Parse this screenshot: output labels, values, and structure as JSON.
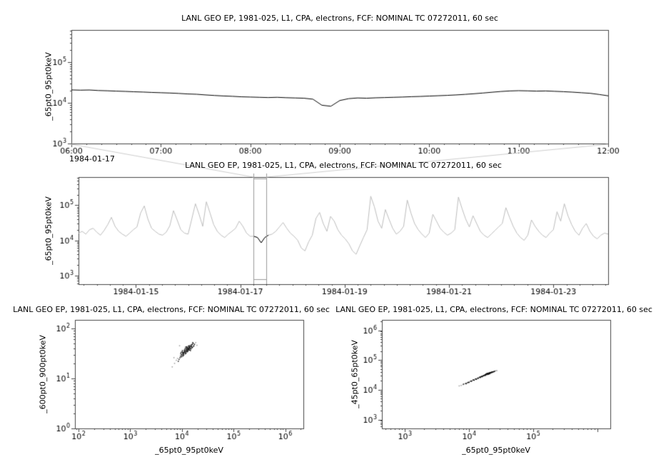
{
  "chart_data": [
    {
      "id": "top-timeseries",
      "type": "line",
      "title": "LANL GEO EP, 1981-025, L1, CPA, electrons, FCF: NOMINAL TC 07272011, 60 sec",
      "ylabel": "_65pt0_95pt0keV",
      "x_axis": {
        "scale": "time",
        "context_label": "1984-01-17",
        "range": [
          6,
          12
        ],
        "tick_values": [
          6,
          7,
          8,
          9,
          10,
          11,
          12
        ],
        "tick_labels": [
          "06:00",
          "07:00",
          "08:00",
          "09:00",
          "10:00",
          "11:00",
          "12:00"
        ],
        "minor_step": 0.1666667
      },
      "y_axis": {
        "scale": "log",
        "range_exp": [
          3.0,
          5.8
        ],
        "tick_exponents": [
          3,
          4,
          5
        ]
      },
      "series": [
        {
          "name": "_65pt0_95pt0keV",
          "color": "#000000",
          "t0": 6.0,
          "dt": 0.1,
          "values": [
            21000,
            20700,
            20900,
            20300,
            20000,
            19600,
            19300,
            18900,
            18600,
            18200,
            17900,
            17600,
            17200,
            16700,
            16400,
            15800,
            15300,
            14900,
            14600,
            14200,
            14000,
            13800,
            13600,
            13800,
            13500,
            13300,
            13100,
            12400,
            8800,
            8300,
            11500,
            12800,
            13300,
            13100,
            13400,
            13600,
            13800,
            14000,
            14300,
            14500,
            14800,
            15100,
            15400,
            15800,
            16300,
            16900,
            17600,
            18400,
            19200,
            19800,
            20100,
            19900,
            19600,
            19800,
            19400,
            19000,
            18500,
            17900,
            17300,
            16200,
            15000
          ]
        }
      ]
    },
    {
      "id": "context-timeseries",
      "type": "line",
      "title": "LANL GEO EP, 1981-025, L1, CPA, electrons, FCF: NOMINAL TC 07272011, 60 sec",
      "ylabel": "_65pt0_95pt0keV",
      "x_axis": {
        "scale": "time",
        "range": [
          13.9,
          24.05
        ],
        "tick_values": [
          15,
          17,
          19,
          21,
          23
        ],
        "tick_labels": [
          "1984-01-15",
          "1984-01-17",
          "1984-01-19",
          "1984-01-21",
          "1984-01-23"
        ],
        "minor_step": 0.25
      },
      "y_axis": {
        "scale": "log",
        "range_exp": [
          2.75,
          5.8
        ],
        "tick_exponents": [
          3,
          4,
          5
        ]
      },
      "series": [
        {
          "name": "_65pt0_95pt0keV",
          "color": "#bcbcbc",
          "t0": 13.9,
          "dt": 0.07,
          "values": [
            16000,
            18000,
            15000,
            20000,
            22000,
            17000,
            14000,
            19000,
            28000,
            45000,
            25000,
            18000,
            15000,
            13000,
            16000,
            20000,
            24000,
            60000,
            95000,
            40000,
            22000,
            18000,
            15000,
            14000,
            17000,
            26000,
            70000,
            38000,
            20000,
            16000,
            15000,
            40000,
            110000,
            55000,
            25000,
            125000,
            60000,
            28000,
            18000,
            14000,
            12000,
            15000,
            18000,
            22000,
            35000,
            25000,
            16000,
            13000,
            13000,
            12000,
            8500,
            12000,
            14000,
            15000,
            18000,
            24000,
            32000,
            22000,
            16000,
            13000,
            10000,
            6000,
            5000,
            9000,
            14000,
            42000,
            62000,
            30000,
            18000,
            48000,
            35000,
            20000,
            14000,
            11000,
            8000,
            5000,
            4000,
            7000,
            12000,
            20000,
            180000,
            90000,
            35000,
            22000,
            75000,
            40000,
            22000,
            15000,
            18000,
            25000,
            140000,
            60000,
            30000,
            20000,
            15000,
            12000,
            16000,
            55000,
            35000,
            22000,
            17000,
            14000,
            16000,
            20000,
            170000,
            80000,
            40000,
            24000,
            50000,
            30000,
            18000,
            14000,
            12000,
            15000,
            19000,
            24000,
            30000,
            85000,
            45000,
            25000,
            16000,
            12000,
            10000,
            14000,
            38000,
            25000,
            18000,
            14000,
            12000,
            16000,
            20000,
            65000,
            35000,
            110000,
            50000,
            28000,
            18000,
            14000,
            22000,
            30000,
            18000,
            13000,
            11000,
            14000,
            16000,
            15000
          ]
        }
      ],
      "highlight": {
        "t_range": [
          17.25,
          17.5
        ],
        "color": "#000000"
      },
      "selection_box": {
        "t_range": [
          17.25,
          17.5
        ],
        "color": "#9a9a9a"
      }
    },
    {
      "id": "scatter-600-900",
      "type": "scatter",
      "title": "LANL GEO EP, 1981-025, L1, CPA, electrons, FCF: NOMINAL TC 07272011, 60 sec",
      "xlabel": "_65pt0_95pt0keV",
      "ylabel": "_600pt0_900pt0keV",
      "x_axis": {
        "scale": "log",
        "range_exp": [
          1.93,
          6.35
        ],
        "tick_exponents": [
          2,
          3,
          4,
          5,
          6
        ]
      },
      "y_axis": {
        "scale": "log",
        "range_exp": [
          0,
          2.17
        ],
        "tick_exponents": [
          0,
          1,
          2
        ]
      },
      "marker": {
        "color": "#111111",
        "faint_color": "#9a9a9a",
        "size": 1.5
      },
      "points": [
        [
          9500,
          31
        ],
        [
          10200,
          36
        ],
        [
          11000,
          33
        ],
        [
          12500,
          40
        ],
        [
          13000,
          38
        ],
        [
          11800,
          42
        ],
        [
          10800,
          29
        ],
        [
          12200,
          35
        ],
        [
          13500,
          37
        ],
        [
          14000,
          44
        ],
        [
          9800,
          27
        ],
        [
          10500,
          33
        ],
        [
          11500,
          39
        ],
        [
          12800,
          36
        ],
        [
          13200,
          41
        ],
        [
          14500,
          43
        ],
        [
          15000,
          39
        ],
        [
          12000,
          32
        ],
        [
          11200,
          37
        ],
        [
          10000,
          30
        ],
        [
          9200,
          26
        ],
        [
          13800,
          45
        ],
        [
          14200,
          40
        ],
        [
          15500,
          47
        ],
        [
          16000,
          42
        ],
        [
          12600,
          34
        ],
        [
          11600,
          31
        ],
        [
          10400,
          28
        ],
        [
          13400,
          39
        ],
        [
          12300,
          43
        ],
        [
          11900,
          35
        ],
        [
          10900,
          32
        ],
        [
          14800,
          46
        ],
        [
          15200,
          44
        ],
        [
          13600,
          38
        ],
        [
          12100,
          36
        ],
        [
          11300,
          34
        ],
        [
          10600,
          31
        ],
        [
          9900,
          29
        ],
        [
          12900,
          40
        ],
        [
          16500,
          50
        ],
        [
          17000,
          45
        ],
        [
          13100,
          35
        ],
        [
          12400,
          38
        ],
        [
          11700,
          33
        ],
        [
          10700,
          30
        ],
        [
          14300,
          41
        ],
        [
          15800,
          48
        ],
        [
          13900,
          42
        ],
        [
          12700,
          37
        ],
        [
          8800,
          24
        ],
        [
          9400,
          28
        ],
        [
          16200,
          52
        ],
        [
          14600,
          36
        ],
        [
          11100,
          35
        ],
        [
          10300,
          32
        ],
        [
          13300,
          44
        ],
        [
          12000,
          39
        ],
        [
          15600,
          41
        ],
        [
          14100,
          37
        ],
        [
          9600,
          33
        ],
        [
          10100,
          34
        ],
        [
          11400,
          36
        ],
        [
          12500,
          42
        ],
        [
          13700,
          40
        ],
        [
          8500,
          22
        ],
        [
          17500,
          48
        ],
        [
          16800,
          44
        ],
        [
          15300,
          43
        ],
        [
          14700,
          39
        ]
      ],
      "faint_points": [
        [
          7200,
          20
        ],
        [
          6500,
          17
        ],
        [
          7800,
          23
        ],
        [
          18500,
          52
        ],
        [
          8200,
          25
        ],
        [
          19500,
          46
        ],
        [
          7000,
          26
        ],
        [
          9000,
          45
        ]
      ]
    },
    {
      "id": "scatter-45-65",
      "type": "scatter",
      "title": "LANL GEO EP, 1981-025, L1, CPA, electrons, FCF: NOMINAL TC 07272011, 60 sec",
      "xlabel": "_65pt0_95pt0keV",
      "ylabel": "_45pt0_65pt0keV",
      "x_axis": {
        "scale": "log",
        "range_exp": [
          2.64,
          6.2
        ],
        "tick_exponents": [
          3,
          4,
          5
        ]
      },
      "y_axis": {
        "scale": "log",
        "range_exp": [
          2.7,
          6.35
        ],
        "tick_exponents": [
          3,
          4,
          5,
          6
        ]
      },
      "marker": {
        "color": "#111111",
        "faint_color": "#9a9a9a",
        "size": 1.5
      },
      "points": [
        [
          8200,
          15500
        ],
        [
          9000,
          16000
        ],
        [
          9500,
          17500
        ],
        [
          10000,
          17800
        ],
        [
          10500,
          19500
        ],
        [
          11000,
          19800
        ],
        [
          11500,
          21500
        ],
        [
          12000,
          21000
        ],
        [
          12500,
          23000
        ],
        [
          13000,
          22500
        ],
        [
          13500,
          24500
        ],
        [
          14000,
          24800
        ],
        [
          14500,
          26500
        ],
        [
          15000,
          26000
        ],
        [
          15500,
          28000
        ],
        [
          16000,
          27500
        ],
        [
          16500,
          29500
        ],
        [
          17000,
          29800
        ],
        [
          17500,
          31500
        ],
        [
          18000,
          31000
        ],
        [
          18500,
          33000
        ],
        [
          19000,
          32500
        ],
        [
          19500,
          34500
        ],
        [
          20000,
          34000
        ],
        [
          20500,
          36000
        ],
        [
          21000,
          35500
        ],
        [
          21500,
          37500
        ],
        [
          22000,
          37000
        ],
        [
          22500,
          39000
        ],
        [
          23000,
          38500
        ],
        [
          18200,
          33500
        ],
        [
          18800,
          34200
        ],
        [
          19200,
          35000
        ],
        [
          19800,
          35800
        ],
        [
          20200,
          36500
        ],
        [
          20800,
          37200
        ],
        [
          21200,
          37800
        ],
        [
          19400,
          33800
        ],
        [
          18600,
          32800
        ],
        [
          20400,
          35200
        ],
        [
          21600,
          38200
        ],
        [
          22800,
          39500
        ],
        [
          17200,
          30500
        ],
        [
          16800,
          29500
        ],
        [
          15800,
          28200
        ],
        [
          14800,
          26200
        ],
        [
          13800,
          24500
        ],
        [
          12800,
          23200
        ],
        [
          11800,
          21200
        ],
        [
          10800,
          19500
        ],
        [
          9800,
          17800
        ],
        [
          8800,
          16200
        ],
        [
          19600,
          34800
        ],
        [
          20600,
          36200
        ],
        [
          21400,
          37400
        ],
        [
          18400,
          33200
        ],
        [
          17800,
          31800
        ],
        [
          22400,
          38800
        ],
        [
          23500,
          40000
        ],
        [
          24000,
          40500
        ],
        [
          20000,
          33000
        ],
        [
          19000,
          35500
        ],
        [
          21000,
          34500
        ],
        [
          18000,
          30500
        ],
        [
          16200,
          28800
        ],
        [
          15200,
          27200
        ],
        [
          24500,
          41000
        ],
        [
          25000,
          42000
        ]
      ],
      "faint_points": [
        [
          7500,
          14000
        ],
        [
          8000,
          15000
        ],
        [
          7000,
          13500
        ],
        [
          26000,
          43500
        ],
        [
          9200,
          16800
        ],
        [
          27000,
          44000
        ]
      ]
    }
  ]
}
